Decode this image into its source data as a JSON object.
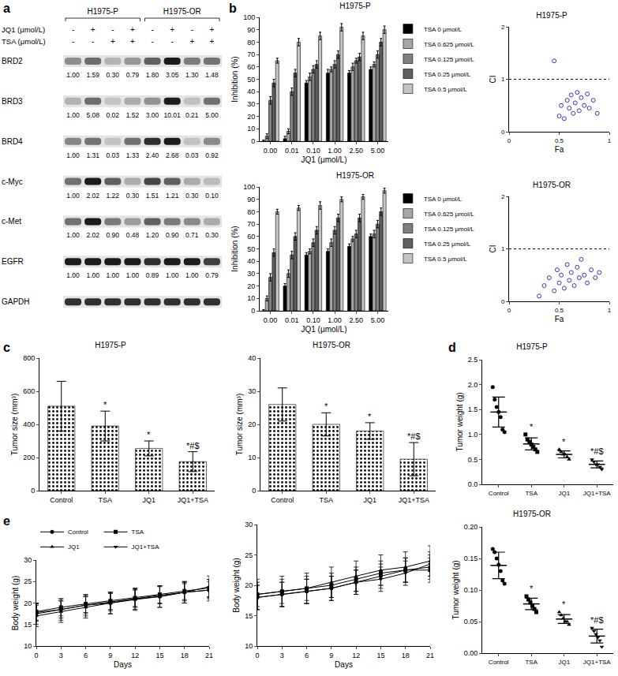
{
  "figure": {
    "panel_labels": [
      "a",
      "b",
      "c",
      "d",
      "e"
    ]
  },
  "blot": {
    "groups": [
      "H1975-P",
      "H1975-OR"
    ],
    "treatments": [
      {
        "name": "JQ1 (μmol/L)",
        "signs": [
          "-",
          "+",
          "-",
          "+",
          "-",
          "+",
          "-",
          "+"
        ]
      },
      {
        "name": "TSA (μmol/L)",
        "signs": [
          "-",
          "-",
          "+",
          "+",
          "-",
          "-",
          "+",
          "+"
        ]
      }
    ],
    "proteins": [
      {
        "name": "BRD2",
        "values": [
          1.0,
          1.59,
          0.3,
          0.79,
          1.8,
          3.05,
          1.3,
          1.48
        ],
        "value_labels": [
          "1.00",
          "1.59",
          "0.30",
          "0.79",
          "1.80",
          "3.05",
          "1.30",
          "1.48"
        ]
      },
      {
        "name": "BRD3",
        "values": [
          1.0,
          5.08,
          0.02,
          1.52,
          3.0,
          10.01,
          0.21,
          5.0
        ],
        "value_labels": [
          "1.00",
          "5.08",
          "0.02",
          "1.52",
          "3.00",
          "10.01",
          "0.21",
          "5.00"
        ]
      },
      {
        "name": "BRD4",
        "values": [
          1.0,
          1.31,
          0.03,
          1.33,
          2.4,
          2.68,
          0.03,
          0.92
        ],
        "value_labels": [
          "1.00",
          "1.31",
          "0.03",
          "1.33",
          "2.40",
          "2.68",
          "0.03",
          "0.92"
        ]
      },
      {
        "name": "c-Myc",
        "values": [
          1.0,
          2.02,
          1.22,
          0.3,
          1.51,
          1.21,
          0.3,
          0.1
        ],
        "value_labels": [
          "1.00",
          "2.02",
          "1.22",
          "0.30",
          "1.51",
          "1.21",
          "0.30",
          "0.10"
        ]
      },
      {
        "name": "c-Met",
        "values": [
          1.0,
          2.02,
          0.9,
          0.48,
          1.2,
          0.9,
          0.71,
          0.3
        ],
        "value_labels": [
          "1.00",
          "2.02",
          "0.90",
          "0.48",
          "1.20",
          "0.90",
          "0.71",
          "0.30"
        ]
      },
      {
        "name": "EGFR",
        "values": [
          1.0,
          1.0,
          1.0,
          1.0,
          0.89,
          1.0,
          1.0,
          0.79
        ],
        "value_labels": [
          "1.00",
          "1.00",
          "1.00",
          "1.00",
          "0.89",
          "1.00",
          "1.00",
          "0.79"
        ]
      },
      {
        "name": "GAPDH"
      }
    ]
  },
  "chart_data": [
    {
      "type": "bar",
      "title": "H1975-P",
      "x_label": "JQ1 (μmol/L)",
      "y_label": "Inhibition (%)",
      "categories": [
        "0.00",
        "0.01",
        "0.10",
        "1.00",
        "2.50",
        "5.00"
      ],
      "series": [
        {
          "name": "TSA 0 μmol/L",
          "color": "#000000",
          "values": [
            0,
            2,
            47,
            55,
            55,
            58
          ],
          "errors": [
            1,
            2,
            2,
            3,
            2,
            2
          ]
        },
        {
          "name": "TSA 0.625 μmol/L",
          "color": "#a6a6a6",
          "values": [
            4,
            8,
            52,
            58,
            60,
            62
          ],
          "errors": [
            2,
            2,
            3,
            2,
            3,
            2
          ]
        },
        {
          "name": "TSA 0.125 μmol/L",
          "color": "#808080",
          "values": [
            33,
            40,
            58,
            62,
            65,
            70
          ],
          "errors": [
            3,
            3,
            3,
            3,
            2,
            3
          ]
        },
        {
          "name": "TSA 0.25 μmol/L",
          "color": "#5f5f5f",
          "values": [
            47,
            55,
            62,
            70,
            68,
            80
          ],
          "errors": [
            3,
            3,
            3,
            3,
            3,
            3
          ]
        },
        {
          "name": "TSA 0.5 μmol/L",
          "color": "#c4c4c4",
          "values": [
            65,
            80,
            85,
            92,
            85,
            90
          ],
          "errors": [
            2,
            3,
            3,
            3,
            3,
            3
          ]
        }
      ],
      "ylim": [
        0,
        100
      ],
      "yticks": [
        0,
        10,
        20,
        30,
        40,
        50,
        60,
        70,
        80,
        90,
        100
      ],
      "grid": false,
      "legend": "right"
    },
    {
      "type": "scatter",
      "title": "H1975-P",
      "x_label": "Fa",
      "y_label": "CI",
      "color": "#3333cc",
      "marker": "open circle",
      "x": [
        0.45,
        0.5,
        0.52,
        0.55,
        0.58,
        0.6,
        0.62,
        0.64,
        0.66,
        0.68,
        0.7,
        0.72,
        0.75,
        0.78,
        0.8,
        0.84,
        0.88
      ],
      "values": [
        1.35,
        0.3,
        0.5,
        0.25,
        0.6,
        0.45,
        0.7,
        0.35,
        0.55,
        0.75,
        0.4,
        0.65,
        0.5,
        0.72,
        0.45,
        0.6,
        0.35
      ],
      "reference_y": 1,
      "xlim": [
        0,
        1
      ],
      "xticks": [
        0,
        0.5,
        1
      ],
      "ylim": [
        0,
        2
      ],
      "yticks": [
        0,
        1,
        2
      ],
      "grid": false
    },
    {
      "type": "bar",
      "title": "H1975-OR",
      "x_label": "JQ1 (μmol/L)",
      "y_label": "Inhibition (%)",
      "categories": [
        "0.00",
        "0.01",
        "0.10",
        "1.00",
        "2.50",
        "5.00"
      ],
      "series": [
        {
          "name": "TSA 0 μmol/L",
          "color": "#000000",
          "values": [
            0,
            20,
            45,
            48,
            52,
            60
          ],
          "errors": [
            1,
            2,
            2,
            2,
            2,
            2
          ]
        },
        {
          "name": "TSA 0.625 μmol/L",
          "color": "#a6a6a6",
          "values": [
            10,
            30,
            48,
            55,
            58,
            62
          ],
          "errors": [
            2,
            3,
            2,
            3,
            2,
            3
          ]
        },
        {
          "name": "TSA 0.125 μmol/L",
          "color": "#808080",
          "values": [
            27,
            45,
            55,
            65,
            62,
            70
          ],
          "errors": [
            3,
            3,
            3,
            3,
            3,
            3
          ]
        },
        {
          "name": "TSA 0.25 μmol/L",
          "color": "#5f5f5f",
          "values": [
            47,
            60,
            65,
            75,
            75,
            80
          ],
          "errors": [
            3,
            3,
            3,
            3,
            3,
            3
          ]
        },
        {
          "name": "TSA 0.5 μmol/L",
          "color": "#c4c4c4",
          "values": [
            80,
            83,
            85,
            90,
            92,
            97
          ],
          "errors": [
            2,
            2,
            3,
            2,
            2,
            2
          ]
        }
      ],
      "ylim": [
        0,
        100
      ],
      "yticks": [
        0,
        10,
        20,
        30,
        40,
        50,
        60,
        70,
        80,
        90,
        100
      ],
      "grid": false,
      "legend": "right"
    },
    {
      "type": "scatter",
      "title": "H1975-OR",
      "x_label": "Fa",
      "y_label": "CI",
      "color": "#3333cc",
      "marker": "open circle",
      "x": [
        0.3,
        0.35,
        0.4,
        0.45,
        0.48,
        0.5,
        0.52,
        0.55,
        0.58,
        0.6,
        0.62,
        0.65,
        0.68,
        0.7,
        0.72,
        0.75,
        0.78,
        0.82,
        0.86,
        0.9
      ],
      "values": [
        0.1,
        0.3,
        0.45,
        0.2,
        0.6,
        0.35,
        0.5,
        0.25,
        0.7,
        0.4,
        0.55,
        0.3,
        0.65,
        0.45,
        0.8,
        0.5,
        0.35,
        0.6,
        0.45,
        0.55
      ],
      "reference_y": 1,
      "xlim": [
        0,
        1
      ],
      "xticks": [
        0,
        0.5,
        1
      ],
      "ylim": [
        0,
        2
      ],
      "yticks": [
        0,
        1,
        2
      ],
      "grid": false
    },
    {
      "type": "bar",
      "title": "H1975-P",
      "y_label": "Tumor size (mm³)",
      "color": "#ffffff",
      "categories": [
        "Control",
        "TSA",
        "JQ1",
        "JQ1+TSA"
      ],
      "values": [
        510,
        390,
        255,
        175
      ],
      "errors": [
        150,
        90,
        45,
        60
      ],
      "notes": [
        null,
        "*",
        "*",
        "*#$"
      ],
      "ylim": [
        0,
        800
      ],
      "yticks": [
        0,
        200,
        400,
        600,
        800
      ],
      "grid": false
    },
    {
      "type": "bar",
      "title": "H1975-OR",
      "y_label": "Tumor size (mm³)",
      "color": "#ffffff",
      "categories": [
        "Control",
        "TSA",
        "JQ1",
        "JQ1+TSA"
      ],
      "values": [
        26,
        20,
        18,
        9.5
      ],
      "errors": [
        5,
        3.5,
        2.5,
        5
      ],
      "notes": [
        null,
        "*",
        "*",
        "*#$"
      ],
      "ylim": [
        0,
        40
      ],
      "yticks": [
        0,
        10,
        20,
        30,
        40
      ],
      "grid": false
    },
    {
      "type": "strip",
      "title": "H1975-P",
      "y_label": "Tumor weight (g)",
      "color": "#000000",
      "categories": [
        "Control",
        "TSA",
        "JQ1",
        "JQ1+TSA"
      ],
      "points": [
        [
          1.95,
          1.7,
          1.55,
          1.45,
          1.35,
          1.1,
          1.05
        ],
        [
          1.0,
          0.9,
          0.85,
          0.8,
          0.75,
          0.7,
          0.65
        ],
        [
          0.7,
          0.65,
          0.6,
          0.6,
          0.55,
          0.5
        ],
        [
          0.5,
          0.45,
          0.4,
          0.4,
          0.35,
          0.3
        ]
      ],
      "means": [
        1.45,
        0.81,
        0.6,
        0.4
      ],
      "sds": [
        0.3,
        0.12,
        0.07,
        0.07
      ],
      "markers": [
        "circle",
        "square",
        "triangle-up",
        "triangle-down"
      ],
      "notes": [
        null,
        "*",
        "*",
        "*#$"
      ],
      "ylim": [
        0,
        2.5
      ],
      "yticks": [
        {
          "value": 0,
          "label": "0.0"
        },
        0.5,
        {
          "value": 1,
          "label": "1.0"
        },
        1.5,
        {
          "value": 2,
          "label": "2.0"
        },
        2.5
      ],
      "grid": false
    },
    {
      "type": "strip",
      "title": "H1975-OR",
      "y_label": "Tumor weight (g)",
      "color": "#000000",
      "categories": [
        "Control",
        "TSA",
        "JQ1",
        "JQ1+TSA"
      ],
      "points": [
        [
          0.165,
          0.16,
          0.15,
          0.14,
          0.13,
          0.115,
          0.11
        ],
        [
          0.09,
          0.085,
          0.08,
          0.075,
          0.07,
          0.065
        ],
        [
          0.065,
          0.06,
          0.055,
          0.05,
          0.05,
          0.045
        ],
        [
          0.04,
          0.035,
          0.03,
          0.025,
          0.02,
          0.01
        ]
      ],
      "means": [
        0.139,
        0.078,
        0.054,
        0.027
      ],
      "sds": [
        0.021,
        0.009,
        0.007,
        0.011
      ],
      "markers": [
        "circle",
        "square",
        "triangle-up",
        "triangle-down"
      ],
      "notes": [
        null,
        "*",
        "*",
        "*#$"
      ],
      "ylim": [
        0,
        0.2
      ],
      "yticks": [
        {
          "value": 0,
          "label": "0.00"
        },
        0.05,
        {
          "value": 0.1,
          "label": "0.10"
        },
        0.15,
        {
          "value": 0.2,
          "label": "0.20"
        }
      ],
      "grid": false
    },
    {
      "type": "line",
      "x_label": "Days",
      "y_label": "Body weight (g)",
      "color": "#000000",
      "x": [
        0,
        3,
        6,
        9,
        12,
        15,
        18,
        21
      ],
      "series": [
        {
          "name": "Control",
          "marker": "circle",
          "values": [
            17.5,
            18.5,
            19.5,
            20,
            21,
            21.5,
            22.5,
            23
          ],
          "errors": [
            2.5,
            2.5,
            2.5,
            2.5,
            2.5,
            2.5,
            2.5,
            2.5
          ]
        },
        {
          "name": "TSA",
          "marker": "square",
          "values": [
            18,
            19,
            19.8,
            20.5,
            21.2,
            22,
            22.8,
            23.5
          ],
          "errors": [
            2,
            2,
            2,
            2,
            2,
            2,
            2,
            2
          ]
        },
        {
          "name": "JQ1",
          "marker": "triangle-up",
          "values": [
            17,
            18,
            19,
            20,
            20.8,
            21.5,
            22.5,
            23.8
          ],
          "errors": [
            2.5,
            2.5,
            2.5,
            2.5,
            2.5,
            2.5,
            2.5,
            2.5
          ]
        },
        {
          "name": "JQ1+TSA",
          "marker": "triangle-down",
          "values": [
            17.8,
            18.5,
            19.5,
            20.2,
            21,
            21.8,
            22.5,
            23
          ],
          "errors": [
            2,
            2,
            2,
            2,
            2,
            2,
            2,
            2
          ]
        }
      ],
      "xlim": [
        0,
        21
      ],
      "xticks": [
        0,
        3,
        6,
        9,
        12,
        15,
        18,
        21
      ],
      "ylim": [
        10,
        30
      ],
      "yticks": [
        10,
        15,
        20,
        25,
        30
      ],
      "grid": false,
      "legend": "top"
    },
    {
      "type": "line",
      "x_label": "Days",
      "y_label": "Body weight (g)",
      "color": "#000000",
      "x": [
        0,
        3,
        6,
        9,
        12,
        15,
        18,
        21
      ],
      "series": [
        {
          "name": "Control",
          "marker": "circle",
          "values": [
            18,
            18.5,
            19,
            19.5,
            20.5,
            21.5,
            22.5,
            23
          ],
          "errors": [
            2,
            2,
            2,
            2,
            2,
            2,
            2,
            2
          ]
        },
        {
          "name": "TSA",
          "marker": "square",
          "values": [
            18.5,
            19,
            19.5,
            20,
            21,
            22,
            22.5,
            22.5
          ],
          "errors": [
            2,
            2,
            2,
            2,
            2,
            2,
            2,
            2
          ]
        },
        {
          "name": "JQ1",
          "marker": "triangle-up",
          "values": [
            18.5,
            19,
            19.5,
            20.5,
            21.5,
            22.5,
            23,
            24
          ],
          "errors": [
            2.5,
            2.5,
            2.5,
            2.5,
            2.5,
            2.5,
            2.5,
            2.5
          ]
        },
        {
          "name": "JQ1+TSA",
          "marker": "triangle-down",
          "values": [
            18,
            18.5,
            19,
            19.5,
            20.5,
            21,
            22,
            23.5
          ],
          "errors": [
            2,
            2,
            2,
            2,
            2,
            2,
            2,
            2
          ]
        }
      ],
      "xlim": [
        0,
        21
      ],
      "xticks": [
        0,
        3,
        6,
        9,
        12,
        15,
        18,
        21
      ],
      "ylim": [
        10,
        30
      ],
      "yticks": [
        10,
        15,
        20,
        25,
        30
      ],
      "grid": false
    }
  ]
}
